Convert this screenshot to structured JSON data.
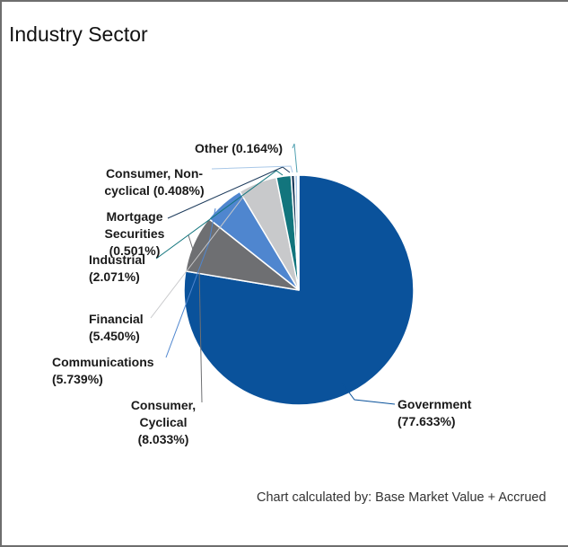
{
  "chart_data": {
    "type": "pie",
    "title": "Industry Sector",
    "footnote": "Chart calculated by: Base Market Value + Accrued",
    "slices": [
      {
        "name": "Government",
        "value": 77.633,
        "label": [
          "Government",
          "(77.633%)"
        ],
        "color": "#0a529b"
      },
      {
        "name": "Consumer, Cyclical",
        "value": 8.033,
        "label": [
          "Consumer,",
          "Cyclical",
          "(8.033%)"
        ],
        "color": "#6e6f72"
      },
      {
        "name": "Communications",
        "value": 5.739,
        "label": [
          "Communications",
          "(5.739%)"
        ],
        "color": "#4f86cf"
      },
      {
        "name": "Financial",
        "value": 5.45,
        "label": [
          "Financial",
          "(5.450%)"
        ],
        "color": "#c8c9cb"
      },
      {
        "name": "Industrial",
        "value": 2.071,
        "label": [
          "Industrial",
          "(2.071%)"
        ],
        "color": "#12757d"
      },
      {
        "name": "Mortgage Securities",
        "value": 0.501,
        "label": [
          "Mortgage",
          "Securities",
          "(0.501%)"
        ],
        "color": "#1d3b5c"
      },
      {
        "name": "Consumer, Non-cyclical",
        "value": 0.408,
        "label": [
          "Consumer, Non-",
          "cyclical (0.408%)"
        ],
        "color": "#a9c8e8"
      },
      {
        "name": "Other",
        "value": 0.164,
        "label": [
          "Other (0.164%)"
        ],
        "color": "#4e9fb0"
      }
    ]
  }
}
